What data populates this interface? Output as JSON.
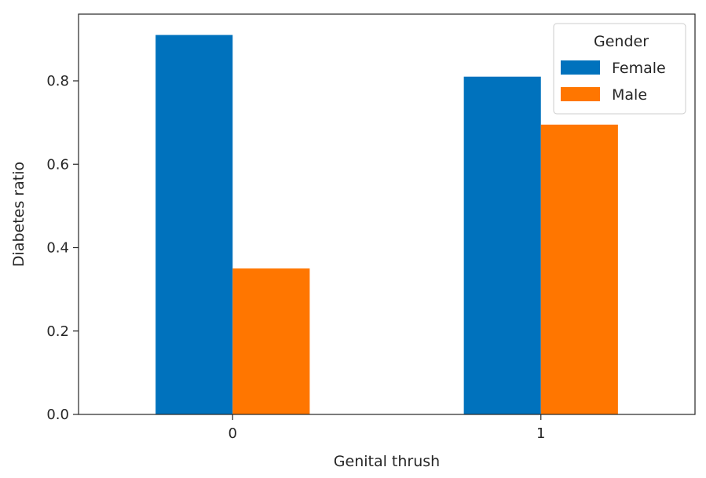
{
  "chart_data": {
    "type": "bar",
    "title": "",
    "xlabel": "Genital thrush",
    "ylabel": "Diabetes ratio",
    "categories": [
      "0",
      "1"
    ],
    "series": [
      {
        "name": "Female",
        "color": "#0072bd",
        "values": [
          0.91,
          0.81
        ]
      },
      {
        "name": "Male",
        "color": "#ff7600",
        "values": [
          0.35,
          0.695
        ]
      }
    ],
    "ylim": [
      0,
      0.96
    ],
    "yticks": [
      0.0,
      0.2,
      0.4,
      0.6,
      0.8
    ],
    "ytick_labels": [
      "0.0",
      "0.2",
      "0.4",
      "0.6",
      "0.8"
    ],
    "grid": false,
    "legend": {
      "title": "Gender",
      "placement": "top-right"
    }
  }
}
